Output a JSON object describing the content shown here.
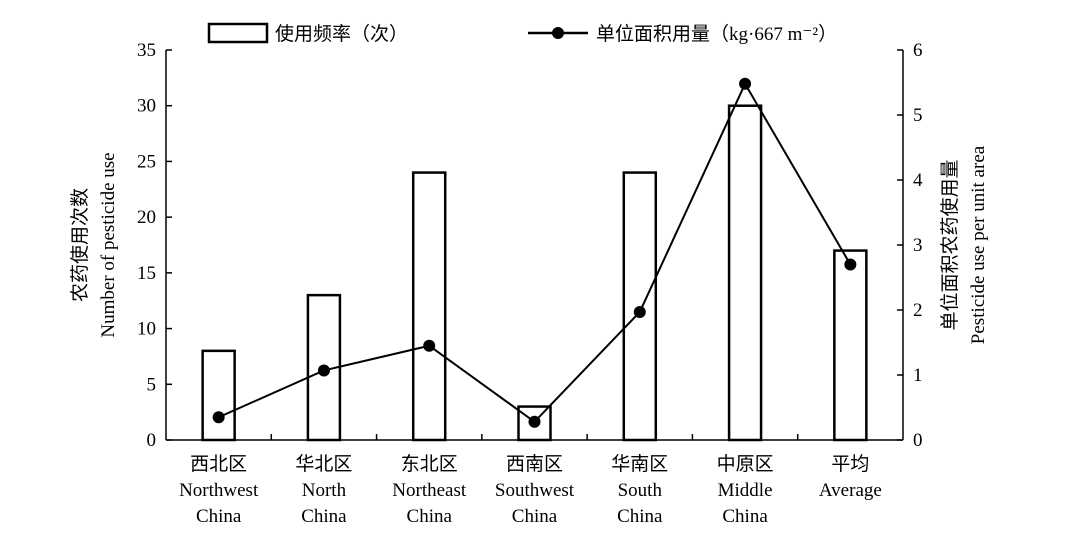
{
  "chart_data": {
    "type": "bar",
    "categories": [
      [
        "西北区",
        "Northwest",
        "China"
      ],
      [
        "华北区",
        "North",
        "China"
      ],
      [
        "东北区",
        "Northeast",
        "China"
      ],
      [
        "西南区",
        "Southwest",
        "China"
      ],
      [
        "华南区",
        "South",
        "China"
      ],
      [
        "中原区",
        "Middle",
        "China"
      ],
      [
        "平均",
        "Average"
      ]
    ],
    "series": [
      {
        "name": "使用频率（次）",
        "type": "bar",
        "axis": "left",
        "values": [
          8,
          13,
          24,
          3,
          24,
          30,
          17
        ]
      },
      {
        "name": "单位面积用量（kg·667 m⁻²）",
        "type": "line",
        "axis": "right",
        "values": [
          0.35,
          1.07,
          1.45,
          0.28,
          1.97,
          5.48,
          2.7
        ]
      }
    ],
    "ylabel": [
      "农药使用次数",
      "Number of pesticide use"
    ],
    "y2label": [
      "单位面积农药使用量",
      "Pesticide use per unit area"
    ],
    "ylim": [
      0,
      35
    ],
    "y2lim": [
      0,
      6
    ],
    "yticks": [
      "0",
      "5",
      "10",
      "15",
      "20",
      "25",
      "30",
      "35"
    ],
    "y2ticks": [
      "0",
      "1",
      "2",
      "3",
      "4",
      "5",
      "6"
    ],
    "legend_position": "top",
    "grid": false,
    "colors": {
      "bar_fill": "#ffffff",
      "stroke": "#000000"
    }
  }
}
